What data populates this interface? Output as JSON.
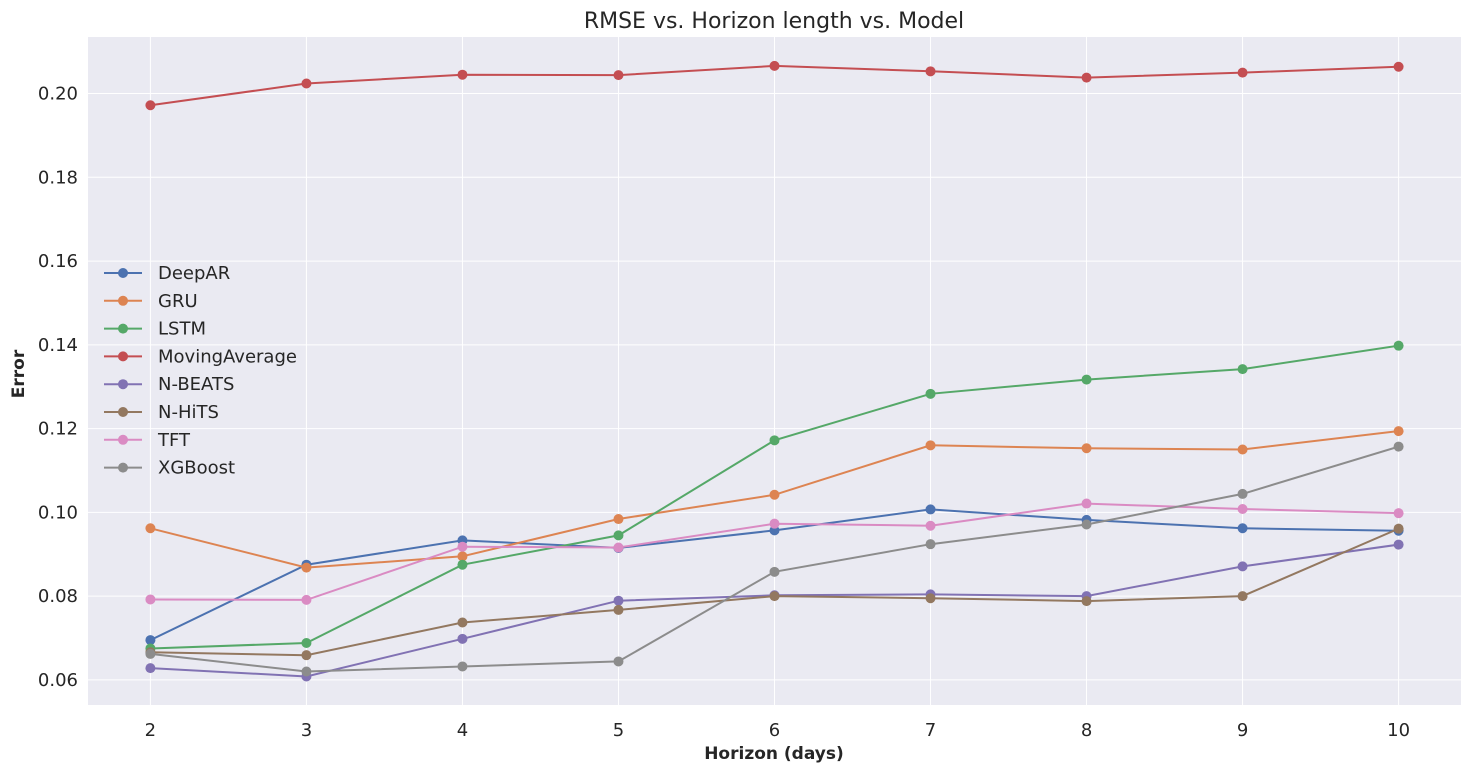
{
  "chart_data": {
    "type": "line",
    "title": "RMSE vs. Horizon length vs. Model",
    "xlabel": "Horizon (days)",
    "ylabel": "Error",
    "x": [
      2,
      3,
      4,
      5,
      6,
      7,
      8,
      9,
      10
    ],
    "xlim": [
      1.6,
      10.4
    ],
    "ylim": [
      0.054,
      0.2135
    ],
    "yticks": [
      0.06,
      0.08,
      0.1,
      0.12,
      0.14,
      0.16,
      0.18,
      0.2
    ],
    "ytick_labels": [
      "0.06",
      "0.08",
      "0.10",
      "0.12",
      "0.14",
      "0.16",
      "0.18",
      "0.20"
    ],
    "xtick_labels": [
      "2",
      "3",
      "4",
      "5",
      "6",
      "7",
      "8",
      "9",
      "10"
    ],
    "grid": true,
    "legend_position": "center-left",
    "series": [
      {
        "name": "DeepAR",
        "color": "#4c72b0",
        "values": [
          0.0695,
          0.0875,
          0.0933,
          0.0915,
          0.0957,
          0.1007,
          0.0982,
          0.0962,
          0.0956
        ]
      },
      {
        "name": "GRU",
        "color": "#dd8452",
        "values": [
          0.0962,
          0.0868,
          0.0895,
          0.0984,
          0.1042,
          0.116,
          0.1153,
          0.115,
          0.1194
        ]
      },
      {
        "name": "LSTM",
        "color": "#55a868",
        "values": [
          0.0675,
          0.0688,
          0.0875,
          0.0945,
          0.1172,
          0.1283,
          0.1317,
          0.1342,
          0.1398
        ]
      },
      {
        "name": "MovingAverage",
        "color": "#c44e52",
        "values": [
          0.1972,
          0.2024,
          0.2045,
          0.2044,
          0.2066,
          0.2053,
          0.2038,
          0.205,
          0.2064
        ]
      },
      {
        "name": "N-BEATS",
        "color": "#8172b3",
        "values": [
          0.0628,
          0.0608,
          0.0698,
          0.0789,
          0.0802,
          0.0804,
          0.08,
          0.0871,
          0.0923
        ]
      },
      {
        "name": "N-HiTS",
        "color": "#937860",
        "values": [
          0.0666,
          0.0659,
          0.0737,
          0.0767,
          0.08,
          0.0795,
          0.0788,
          0.08,
          0.0961
        ]
      },
      {
        "name": "TFT",
        "color": "#da8bc3",
        "values": [
          0.0792,
          0.0791,
          0.0918,
          0.0916,
          0.0973,
          0.0968,
          0.1021,
          0.1008,
          0.0998
        ]
      },
      {
        "name": "XGBoost",
        "color": "#8c8c8c",
        "values": [
          0.0662,
          0.062,
          0.0632,
          0.0644,
          0.0858,
          0.0924,
          0.0971,
          0.1044,
          0.1157
        ]
      }
    ]
  }
}
